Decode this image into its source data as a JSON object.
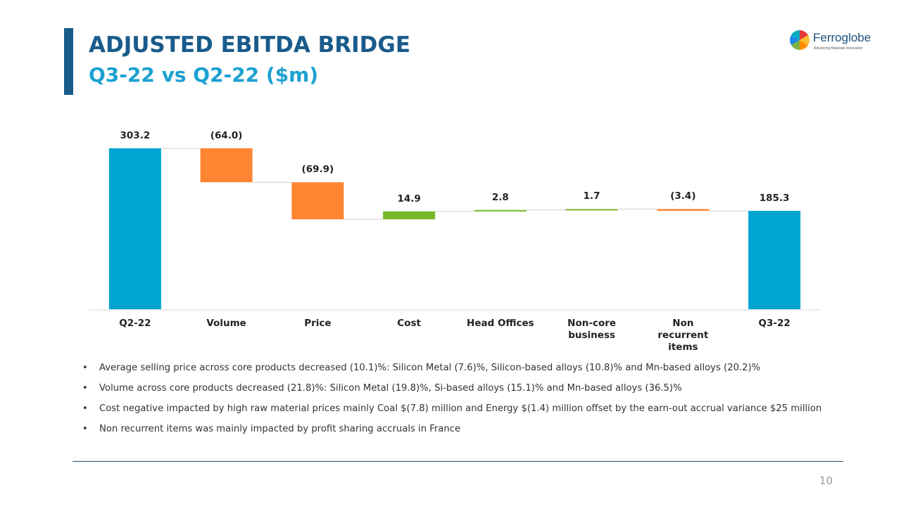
{
  "header": {
    "title": "ADJUSTED EBITDA BRIDGE",
    "subtitle": "Q3-22 vs Q2-22 ($m)",
    "logo": {
      "name": "Ferroglobe",
      "tagline": "Advancing Materials Innovation"
    }
  },
  "chart_data": {
    "type": "waterfall",
    "categories": [
      "Q2-22",
      "Volume",
      "Price",
      "Cost",
      "Head Offices",
      "Non-core business",
      "Non recurrent items",
      "Q3-22"
    ],
    "values": [
      303.2,
      -64.0,
      -69.9,
      14.9,
      2.8,
      1.7,
      -3.4,
      185.3
    ],
    "value_labels": [
      "303.2",
      "(64.0)",
      "(69.9)",
      "14.9",
      "2.8",
      "1.7",
      "(3.4)",
      "185.3"
    ],
    "colors": {
      "total": "#00a5cf",
      "increase": "#76b82a",
      "decrease": "#ff8533"
    }
  },
  "bullets": [
    "Average selling price across core products decreased (10.1)%: Silicon Metal (7.6)%, Silicon-based alloys (10.8)% and Mn-based alloys (20.2)%",
    "Volume across core products decreased (21.8)%: Silicon Metal (19.8)%, Si-based alloys (15.1)% and Mn-based alloys (36.5)%",
    "Cost negative impacted by high raw material prices mainly Coal $(7.8) million and Energy $(1.4) million offset by the earn-out accrual variance $25 million",
    "Non recurrent items was mainly impacted by profit sharing accruals in France"
  ],
  "page_number": "10"
}
